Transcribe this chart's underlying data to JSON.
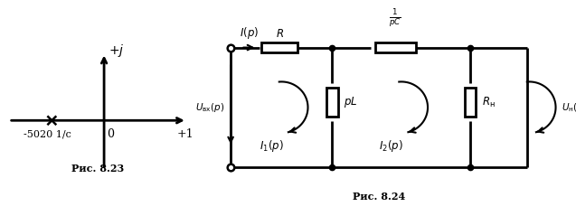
{
  "background": "#ffffff",
  "line_color": "#000000",
  "fig823_caption": "Рис. 8.23",
  "fig824_caption": "Рис. 8.24",
  "pole_label": "-5020 1/с",
  "zero_label": "0",
  "x_label": "+1",
  "y_label": "+j"
}
